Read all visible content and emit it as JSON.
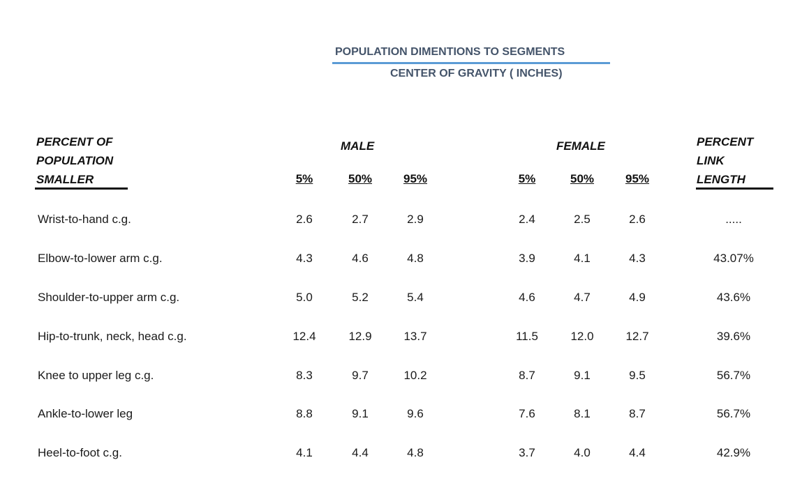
{
  "title": {
    "line1": "POPULATION DIMENTIONS TO SEGMENTS",
    "line2": "CENTER OF GRAVITY ( INCHES)"
  },
  "header": {
    "percent_pop": [
      "PERCENT OF",
      "POPULATION",
      "SMALLER"
    ],
    "male": "MALE",
    "female": "FEMALE",
    "percent_link": [
      "PERCENT",
      "LINK",
      "LENGTH"
    ],
    "percentiles": [
      "5%",
      "50%",
      "95%"
    ]
  },
  "rows": [
    {
      "label": "Wrist-to-hand c.g.",
      "male": [
        "2.6",
        "2.7",
        "2.9"
      ],
      "female": [
        "2.4",
        "2.5",
        "2.6"
      ],
      "link": "....."
    },
    {
      "label": "Elbow-to-lower arm c.g.",
      "male": [
        "4.3",
        "4.6",
        "4.8"
      ],
      "female": [
        "3.9",
        "4.1",
        "4.3"
      ],
      "link": "43.07%"
    },
    {
      "label": "Shoulder-to-upper arm c.g.",
      "male": [
        "5.0",
        "5.2",
        "5.4"
      ],
      "female": [
        "4.6",
        "4.7",
        "4.9"
      ],
      "link": "43.6%"
    },
    {
      "label": "Hip-to-trunk, neck, head c.g.",
      "male": [
        "12.4",
        "12.9",
        "13.7"
      ],
      "female": [
        "11.5",
        "12.0",
        "12.7"
      ],
      "link": "39.6%"
    },
    {
      "label": "Knee to upper leg c.g.",
      "male": [
        "8.3",
        "9.7",
        "10.2"
      ],
      "female": [
        "8.7",
        "9.1",
        "9.5"
      ],
      "link": "56.7%"
    },
    {
      "label": "Ankle-to-lower leg",
      "male": [
        "8.8",
        "9.1",
        "9.6"
      ],
      "female": [
        "7.6",
        "8.1",
        "8.7"
      ],
      "link": "56.7%"
    },
    {
      "label": "Heel-to-foot c.g.",
      "male": [
        "4.1",
        "4.4",
        "4.8"
      ],
      "female": [
        "3.7",
        "4.0",
        "4.4"
      ],
      "link": "42.9%"
    }
  ]
}
